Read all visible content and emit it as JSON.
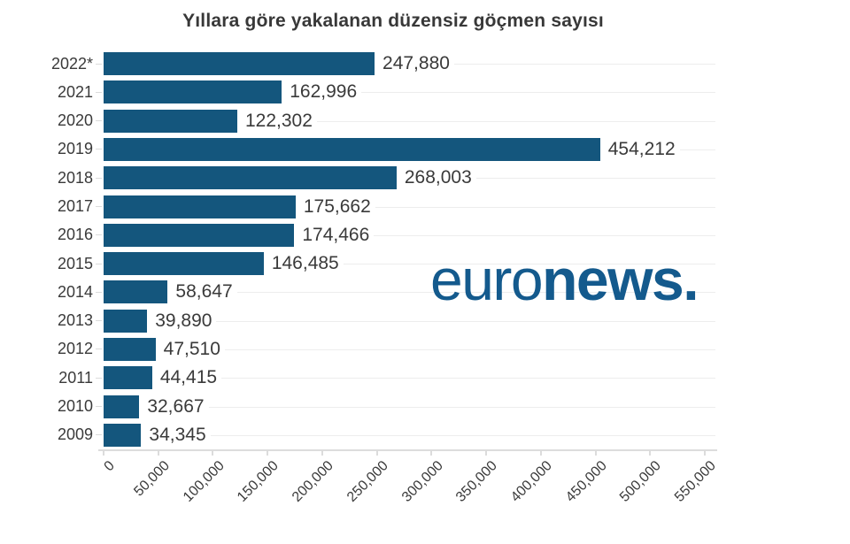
{
  "colors": {
    "background": "#ffffff",
    "bar": "#14567d",
    "logo": "#145a8d",
    "grid": "#ededed",
    "axis": "#dcdcdc",
    "text": "#3a3a3a",
    "title": "#383838"
  },
  "logo": {
    "euro": "euro",
    "news": "news",
    "dot": "."
  },
  "chart_data": {
    "type": "bar",
    "orientation": "horizontal",
    "title": "Yıllara göre yakalanan düzensiz göçmen sayısı",
    "xlabel": "",
    "ylabel": "",
    "categories": [
      "2022*",
      "2021",
      "2020",
      "2019",
      "2018",
      "2017",
      "2016",
      "2015",
      "2014",
      "2013",
      "2012",
      "2011",
      "2010",
      "2009"
    ],
    "values": [
      247880,
      162996,
      122302,
      454212,
      268003,
      175662,
      174466,
      146485,
      58647,
      39890,
      47510,
      44415,
      32667,
      34345
    ],
    "value_labels": [
      "247,880",
      "162,996",
      "122,302",
      "454,212",
      "268,003",
      "175,662",
      "174,466",
      "146,485",
      "58,647",
      "39,890",
      "47,510",
      "44,415",
      "32,667",
      "34,345"
    ],
    "xlim": [
      0,
      550000
    ],
    "x_ticks": [
      0,
      50000,
      100000,
      150000,
      200000,
      250000,
      300000,
      350000,
      400000,
      450000,
      500000,
      550000
    ],
    "x_tick_labels": [
      "0",
      "50,000",
      "100,000",
      "150,000",
      "200,000",
      "250,000",
      "300,000",
      "350,000",
      "400,000",
      "450,000",
      "500,000",
      "550,000"
    ],
    "grid": "row-gridlines",
    "legend": "none",
    "tick_label_rotation": -45
  }
}
